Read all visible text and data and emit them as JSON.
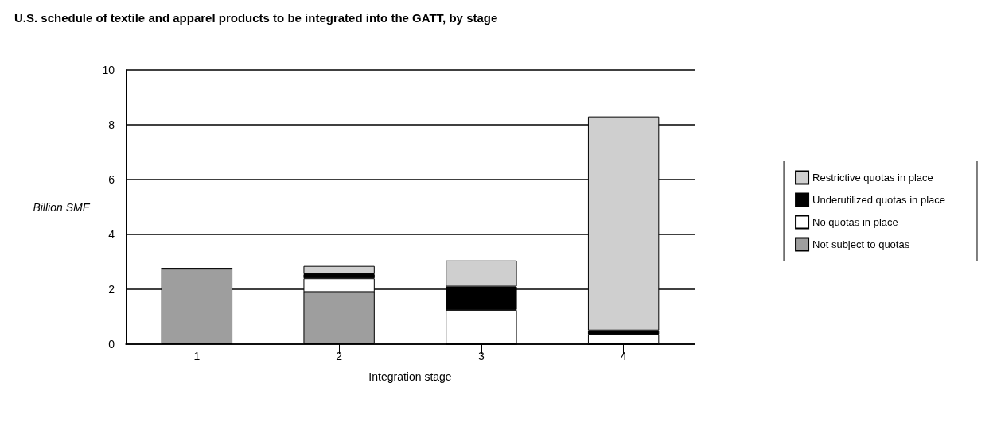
{
  "chart_data": {
    "type": "bar",
    "title": "U.S. schedule of textile and apparel products to be integrated into the GATT, by stage",
    "xlabel": "Integration stage",
    "ylabel": "Billion SME",
    "categories": [
      "1",
      "2",
      "3",
      "4"
    ],
    "stacked": true,
    "series": [
      {
        "name": "Not subject to quotas",
        "color": "#9e9e9e",
        "values": [
          2.75,
          1.9,
          0,
          0
        ]
      },
      {
        "name": "No quotas in place",
        "color": "#ffffff",
        "values": [
          0,
          0.5,
          1.25,
          0.35
        ]
      },
      {
        "name": "Underutilized quotas in place",
        "color": "#000000",
        "values": [
          0,
          0.15,
          0.85,
          0.15
        ]
      },
      {
        "name": "Restrictive quotas in place",
        "color": "#cfcfcf",
        "values": [
          0,
          0.3,
          0.95,
          7.8
        ]
      }
    ],
    "ylim": [
      0,
      10
    ],
    "yticks": [
      0,
      2,
      4,
      6,
      8,
      10
    ],
    "grid": "y",
    "legend": "right"
  }
}
